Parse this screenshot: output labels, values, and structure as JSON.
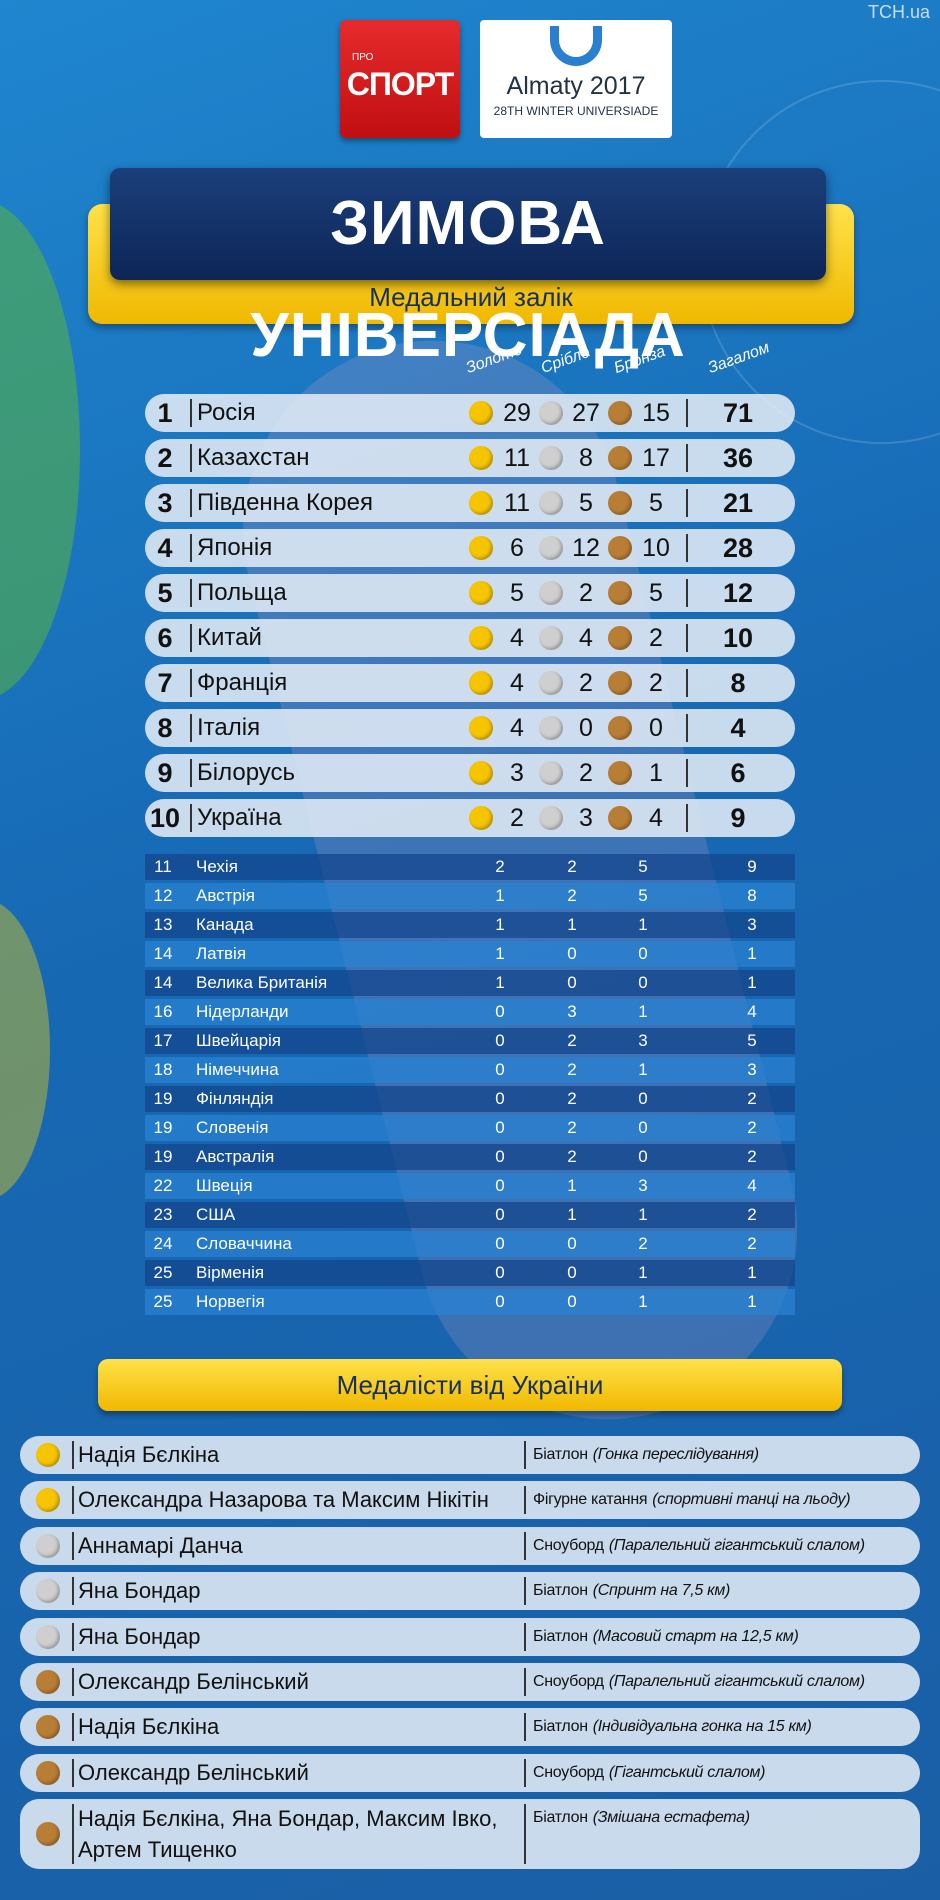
{
  "header": {
    "logo_small": "ПРО",
    "logo": "СПОРТ",
    "event": "Almaty 2017",
    "event_sub": "28TH WINTER UNIVERSIADE",
    "watermark": "TCH.ua"
  },
  "title": "ЗИМОВА УНІВЕРСІАДА",
  "subtitle": "Медальний залік",
  "table": {
    "columns": [
      "Золото",
      "Срібло",
      "Бронза",
      "Загалом"
    ],
    "medal_colors": [
      "#f6c500",
      "#cfcfcf",
      "#b97e35"
    ],
    "top_rows": [
      [
        1,
        "Росія",
        29,
        27,
        15,
        71
      ],
      [
        2,
        "Казахстан",
        11,
        8,
        17,
        36
      ],
      [
        3,
        "Південна Корея",
        11,
        5,
        5,
        21
      ],
      [
        4,
        "Японія",
        6,
        12,
        10,
        28
      ],
      [
        5,
        "Польща",
        5,
        2,
        5,
        12
      ],
      [
        6,
        "Китай",
        4,
        4,
        2,
        10
      ],
      [
        7,
        "Франція",
        4,
        2,
        2,
        8
      ],
      [
        8,
        "Італія",
        4,
        0,
        0,
        4
      ],
      [
        9,
        "Білорусь",
        3,
        2,
        1,
        6
      ],
      [
        10,
        "Україна",
        2,
        3,
        4,
        9
      ]
    ],
    "rows": [
      [
        11,
        "Чехія",
        2,
        2,
        5,
        9
      ],
      [
        12,
        "Австрія",
        1,
        2,
        5,
        8
      ],
      [
        13,
        "Канада",
        1,
        1,
        1,
        3
      ],
      [
        14,
        "Латвія",
        1,
        0,
        0,
        1
      ],
      [
        14,
        "Велика Британія",
        1,
        0,
        0,
        1
      ],
      [
        16,
        "Нідерланди",
        0,
        3,
        1,
        4
      ],
      [
        17,
        "Швейцарія",
        0,
        2,
        3,
        5
      ],
      [
        18,
        "Німеччина",
        0,
        2,
        1,
        3
      ],
      [
        19,
        "Фінляндія",
        0,
        2,
        0,
        2
      ],
      [
        19,
        "Словенія",
        0,
        2,
        0,
        2
      ],
      [
        19,
        "Австралія",
        0,
        2,
        0,
        2
      ],
      [
        22,
        "Швеція",
        0,
        1,
        3,
        4
      ],
      [
        23,
        "США",
        0,
        1,
        1,
        2
      ],
      [
        24,
        "Словаччина",
        0,
        0,
        2,
        2
      ],
      [
        25,
        "Вірменія",
        0,
        0,
        1,
        1
      ],
      [
        25,
        "Норвегія",
        0,
        0,
        1,
        1
      ]
    ]
  },
  "medalists": {
    "title": "Медалісти від України",
    "rows": [
      {
        "color": "#f6c500",
        "name": "Надія Бєлкіна",
        "sport": "Біатлон",
        "event": "(Гонка переслідування)"
      },
      {
        "color": "#f6c500",
        "name": "Олександра Назарова та Максим Нікітін",
        "sport": "Фігурне катання",
        "event": "(спортивні танці на льоду)"
      },
      {
        "color": "#cfcfcf",
        "name": "Аннамарі Данча",
        "sport": "Сноуборд",
        "event": "(Паралельний гігантський слалом)"
      },
      {
        "color": "#cfcfcf",
        "name": "Яна Бондар",
        "sport": "Біатлон",
        "event": "(Спринт на 7,5 км)"
      },
      {
        "color": "#cfcfcf",
        "name": "Яна Бондар",
        "sport": "Біатлон",
        "event": "(Масовий старт на 12,5 км)"
      },
      {
        "color": "#b97e35",
        "name": "Олександр Белінський",
        "sport": "Сноуборд",
        "event": "(Паралельний гігантський слалом)"
      },
      {
        "color": "#b97e35",
        "name": "Надія Бєлкіна",
        "sport": "Біатлон",
        "event": "(Індивідуальна гонка на 15 км)"
      },
      {
        "color": "#b97e35",
        "name": "Олександр Белінський",
        "sport": "Сноуборд",
        "event": "(Гігантський слалом)"
      },
      {
        "color": "#b97e35",
        "name": "Надія Бєлкіна, Яна Бондар, Максим Івко, Артем Тищенко",
        "sport": "Біатлон",
        "event": "(Змішана естафета)"
      }
    ]
  }
}
